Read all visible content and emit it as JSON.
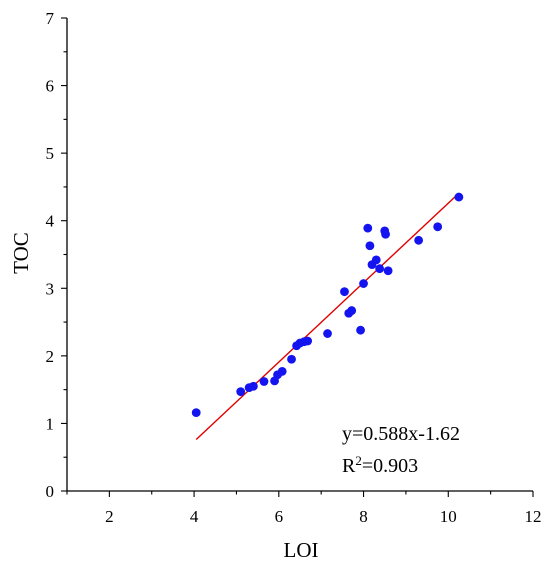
{
  "chart_data": {
    "type": "scatter",
    "title": "",
    "xlabel": "LOI",
    "ylabel": "TOC",
    "xlim": [
      1,
      12
    ],
    "ylim": [
      0,
      7
    ],
    "x_ticks": [
      2,
      4,
      6,
      8,
      10,
      12
    ],
    "y_ticks": [
      0,
      1,
      2,
      3,
      4,
      5,
      6,
      7
    ],
    "x_tick_labels": [
      "2",
      "4",
      "6",
      "8",
      "10",
      "12"
    ],
    "y_tick_labels": [
      "0",
      "1",
      "2",
      "3",
      "4",
      "5",
      "6",
      "7"
    ],
    "grid": false,
    "points": [
      {
        "x": 4.05,
        "y": 1.16
      },
      {
        "x": 5.1,
        "y": 1.47
      },
      {
        "x": 5.3,
        "y": 1.53
      },
      {
        "x": 5.4,
        "y": 1.55
      },
      {
        "x": 5.65,
        "y": 1.62
      },
      {
        "x": 5.9,
        "y": 1.63
      },
      {
        "x": 5.97,
        "y": 1.72
      },
      {
        "x": 6.08,
        "y": 1.77
      },
      {
        "x": 6.3,
        "y": 1.95
      },
      {
        "x": 6.42,
        "y": 2.15
      },
      {
        "x": 6.5,
        "y": 2.19
      },
      {
        "x": 6.6,
        "y": 2.21
      },
      {
        "x": 6.68,
        "y": 2.22
      },
      {
        "x": 7.15,
        "y": 2.33
      },
      {
        "x": 7.55,
        "y": 2.95
      },
      {
        "x": 7.65,
        "y": 2.63
      },
      {
        "x": 7.72,
        "y": 2.67
      },
      {
        "x": 7.93,
        "y": 2.38
      },
      {
        "x": 8.0,
        "y": 3.07
      },
      {
        "x": 8.1,
        "y": 3.89
      },
      {
        "x": 8.15,
        "y": 3.63
      },
      {
        "x": 8.2,
        "y": 3.35
      },
      {
        "x": 8.3,
        "y": 3.42
      },
      {
        "x": 8.38,
        "y": 3.29
      },
      {
        "x": 8.5,
        "y": 3.85
      },
      {
        "x": 8.52,
        "y": 3.8
      },
      {
        "x": 8.58,
        "y": 3.26
      },
      {
        "x": 9.3,
        "y": 3.71
      },
      {
        "x": 9.75,
        "y": 3.91
      },
      {
        "x": 10.25,
        "y": 4.35
      }
    ],
    "fit_line": {
      "x_start": 4.05,
      "x_end": 10.25,
      "slope": 0.588,
      "intercept": -1.62,
      "color": "#e00000"
    },
    "marker_color": "#1414f0",
    "annotation": {
      "equation": "y=0.588x-1.62",
      "r2_prefix": "R",
      "r2_sup": "2",
      "r2_value": "=0.903"
    }
  }
}
